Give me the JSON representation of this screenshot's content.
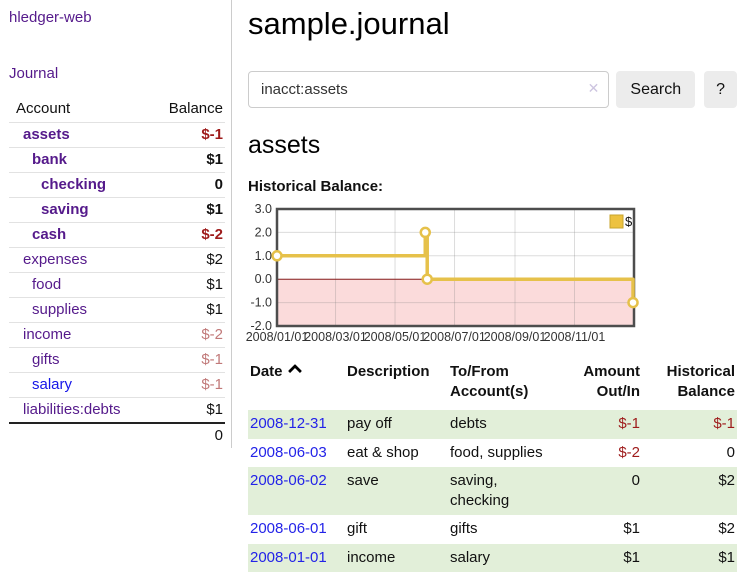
{
  "sidebar": {
    "brand": "hledger-web",
    "nav": [
      {
        "label": "Journal"
      }
    ],
    "accounts_table": {
      "headers": [
        "Account",
        "Balance"
      ],
      "rows": [
        {
          "account": "assets",
          "depth": 1,
          "balance": "$-1",
          "in_account": true
        },
        {
          "account": "bank",
          "depth": 2,
          "balance": "$1",
          "in_account": true
        },
        {
          "account": "checking",
          "depth": 3,
          "balance": "0",
          "in_account": true
        },
        {
          "account": "saving",
          "depth": 3,
          "balance": "$1",
          "in_account": true
        },
        {
          "account": "cash",
          "depth": 2,
          "balance": "$-2",
          "in_account": true
        },
        {
          "account": "expenses",
          "depth": 1,
          "balance": "$2",
          "in_account": false
        },
        {
          "account": "food",
          "depth": 2,
          "balance": "$1",
          "in_account": false
        },
        {
          "account": "supplies",
          "depth": 2,
          "balance": "$1",
          "in_account": false
        },
        {
          "account": "income",
          "depth": 1,
          "balance": "$-2",
          "in_account": false
        },
        {
          "account": "gifts",
          "depth": 2,
          "balance": "$-1",
          "in_account": false
        },
        {
          "account": "salary",
          "depth": 2,
          "balance": "$-1",
          "in_account": false,
          "link_color": "blue"
        },
        {
          "account": "liabilities:debts",
          "depth": 1,
          "balance": "$1",
          "in_account": false
        }
      ],
      "total": "0"
    }
  },
  "header": {
    "title": "sample.journal"
  },
  "search": {
    "value": "inacct:assets",
    "clear_icon": "✕",
    "button_label": "Search",
    "help_label": "?"
  },
  "account_page": {
    "heading": "assets",
    "chart_label": "Historical Balance:"
  },
  "chart_data": {
    "type": "line",
    "title": "Historical Balance:",
    "step": true,
    "series": [
      {
        "name": "$",
        "color": "#E6C14A",
        "points": [
          {
            "x": "2008-01-01",
            "y": 1
          },
          {
            "x": "2008-06-01",
            "y": 2
          },
          {
            "x": "2008-06-03",
            "y": 0
          },
          {
            "x": "2008-12-31",
            "y": -1
          }
        ]
      }
    ],
    "legend": [
      {
        "label": "$",
        "color": "#EDC240"
      }
    ],
    "legend_position": "top-right",
    "xlim": [
      "2008-01-01",
      "2009-01-01"
    ],
    "ylim": [
      -2,
      3
    ],
    "y_ticks": [
      3.0,
      2.0,
      1.0,
      0.0,
      -1.0,
      -2.0
    ],
    "x_ticks": [
      "2008/01/01",
      "2008/03/01",
      "2008/05/01",
      "2008/07/01",
      "2008/09/01",
      "2008/11/01"
    ],
    "grid": true,
    "negative_region_color": "#fbdbdb",
    "zero_line_color": "#8b2020"
  },
  "register_table": {
    "headers": [
      "Date",
      "Description",
      "To/From Account(s)",
      "Amount Out/In",
      "Historical Balance"
    ],
    "sort": {
      "column": "Date",
      "direction": "ascending"
    },
    "rows": [
      {
        "date": "2008-12-31",
        "description": "pay off",
        "accounts": "debts",
        "amount": "$-1",
        "balance": "$-1"
      },
      {
        "date": "2008-06-03",
        "description": "eat & shop",
        "accounts": "food, supplies",
        "amount": "$-2",
        "balance": "0"
      },
      {
        "date": "2008-06-02",
        "description": "save",
        "accounts": "saving, checking",
        "amount": "0",
        "balance": "$2"
      },
      {
        "date": "2008-06-01",
        "description": "gift",
        "accounts": "gifts",
        "amount": "$1",
        "balance": "$2"
      },
      {
        "date": "2008-01-01",
        "description": "income",
        "accounts": "salary",
        "amount": "$1",
        "balance": "$1"
      }
    ]
  },
  "colors": {
    "link_purple": "#551A8B",
    "link_blue": "#2323e8",
    "negative_strong": "#9e1b1b",
    "negative_muted": "#c17979",
    "row_stripe_green": "#e2efd9",
    "chart_line_gold": "#E6C14A"
  }
}
